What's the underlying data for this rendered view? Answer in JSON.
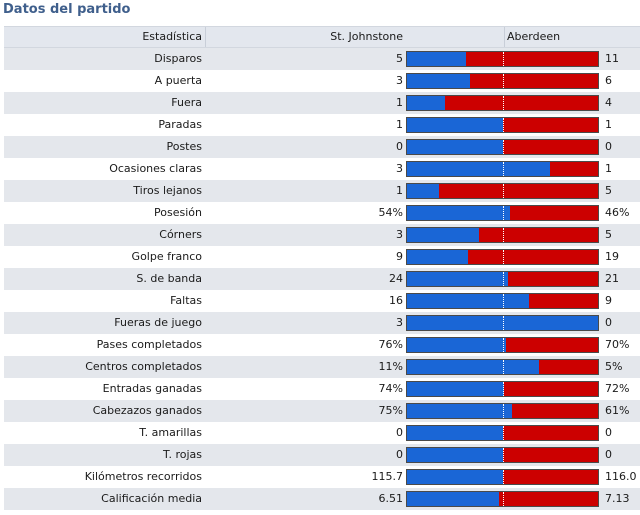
{
  "title": "Datos del partido",
  "header": {
    "stat": "Estadística",
    "home": "St. Johnstone",
    "away": "Aberdeen"
  },
  "colors": {
    "home": "#1a66d6",
    "away": "#cc0000"
  },
  "rows": [
    {
      "label": "Disparos",
      "home": "5",
      "away": "11",
      "share": 0.31
    },
    {
      "label": "A puerta",
      "home": "3",
      "away": "6",
      "share": 0.33
    },
    {
      "label": "Fuera",
      "home": "1",
      "away": "4",
      "share": 0.2
    },
    {
      "label": "Paradas",
      "home": "1",
      "away": "1",
      "share": 0.5
    },
    {
      "label": "Postes",
      "home": "0",
      "away": "0",
      "share": 0.5
    },
    {
      "label": "Ocasiones claras",
      "home": "3",
      "away": "1",
      "share": 0.75
    },
    {
      "label": "Tiros lejanos",
      "home": "1",
      "away": "5",
      "share": 0.17
    },
    {
      "label": "Posesión",
      "home": "54%",
      "away": "46%",
      "share": 0.54
    },
    {
      "label": "Córners",
      "home": "3",
      "away": "5",
      "share": 0.375
    },
    {
      "label": "Golpe franco",
      "home": "9",
      "away": "19",
      "share": 0.32
    },
    {
      "label": "S. de banda",
      "home": "24",
      "away": "21",
      "share": 0.53
    },
    {
      "label": "Faltas",
      "home": "16",
      "away": "9",
      "share": 0.64
    },
    {
      "label": "Fueras de juego",
      "home": "3",
      "away": "0",
      "share": 1.0
    },
    {
      "label": "Pases completados",
      "home": "76%",
      "away": "70%",
      "share": 0.52
    },
    {
      "label": "Centros completados",
      "home": "11%",
      "away": "5%",
      "share": 0.69
    },
    {
      "label": "Entradas ganadas",
      "home": "74%",
      "away": "72%",
      "share": 0.51
    },
    {
      "label": "Cabezazos ganados",
      "home": "75%",
      "away": "61%",
      "share": 0.55
    },
    {
      "label": "T. amarillas",
      "home": "0",
      "away": "0",
      "share": 0.5
    },
    {
      "label": "T. rojas",
      "home": "0",
      "away": "0",
      "share": 0.5
    },
    {
      "label": "Kilómetros recorridos",
      "home": "115.7",
      "away": "116.0",
      "share": 0.5
    },
    {
      "label": "Calificación media",
      "home": "6.51",
      "away": "7.13",
      "share": 0.48
    }
  ]
}
